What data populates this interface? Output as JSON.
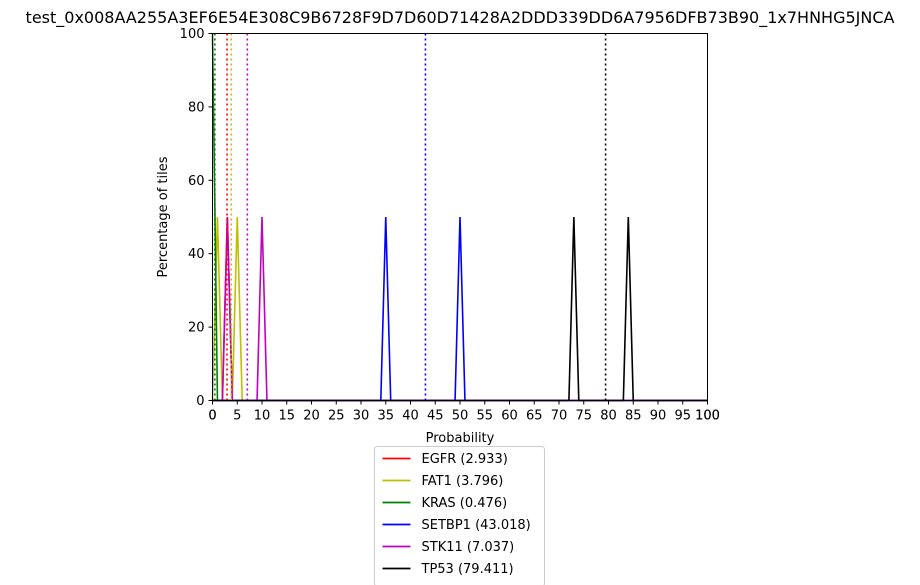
{
  "chart_data": {
    "type": "line",
    "title": "test_0x008AA255A3EF6E54E308C9B6728F9D7D60D71428A2DDD339DD6A7956DFB73B90_1x7HNHG5JNCA",
    "xlabel": "Probability",
    "ylabel": "Percentage of tiles",
    "xlim": [
      0,
      100
    ],
    "ylim": [
      0,
      100
    ],
    "xticks": [
      0,
      5,
      10,
      15,
      20,
      25,
      30,
      35,
      40,
      45,
      50,
      55,
      60,
      65,
      70,
      75,
      80,
      85,
      90,
      95,
      100
    ],
    "yticks": [
      0,
      20,
      40,
      60,
      80,
      100
    ],
    "extra_xtick_labels": [
      {
        "x": 0,
        "label": "0"
      },
      {
        "x": 100,
        "label": "100"
      }
    ],
    "grid": false,
    "legend_position": "below",
    "series": [
      {
        "name": "EGFR (2.933)",
        "color": "#ff0000",
        "mean": 2.933,
        "points": [
          [
            0,
            0
          ],
          [
            2,
            0
          ],
          [
            3,
            50
          ],
          [
            4,
            0
          ],
          [
            100,
            0
          ]
        ]
      },
      {
        "name": "FAT1 (3.796)",
        "color": "#bfbf00",
        "mean": 3.796,
        "points": [
          [
            0,
            0
          ],
          [
            1,
            50
          ],
          [
            2,
            0
          ],
          [
            4,
            0
          ],
          [
            5,
            50
          ],
          [
            6,
            0
          ],
          [
            100,
            0
          ]
        ]
      },
      {
        "name": "KRAS (0.476)",
        "color": "#008000",
        "mean": 0.476,
        "points": [
          [
            0,
            100
          ],
          [
            1,
            0
          ],
          [
            100,
            0
          ]
        ]
      },
      {
        "name": "SETBP1 (43.018)",
        "color": "#0000ff",
        "mean": 43.018,
        "points": [
          [
            0,
            0
          ],
          [
            34,
            0
          ],
          [
            35,
            50
          ],
          [
            36,
            0
          ],
          [
            49,
            0
          ],
          [
            50,
            50
          ],
          [
            51,
            0
          ],
          [
            100,
            0
          ]
        ]
      },
      {
        "name": "STK11 (7.037)",
        "color": "#bf00bf",
        "mean": 7.037,
        "points": [
          [
            0,
            0
          ],
          [
            2,
            0
          ],
          [
            3,
            50
          ],
          [
            4,
            0
          ],
          [
            9,
            0
          ],
          [
            10,
            50
          ],
          [
            11,
            0
          ],
          [
            100,
            0
          ]
        ]
      },
      {
        "name": "TP53 (79.411)",
        "color": "#000000",
        "mean": 79.411,
        "points": [
          [
            0,
            0
          ],
          [
            72,
            0
          ],
          [
            73,
            50
          ],
          [
            74,
            0
          ],
          [
            83,
            0
          ],
          [
            84,
            50
          ],
          [
            85,
            0
          ],
          [
            100,
            0
          ]
        ]
      }
    ]
  }
}
